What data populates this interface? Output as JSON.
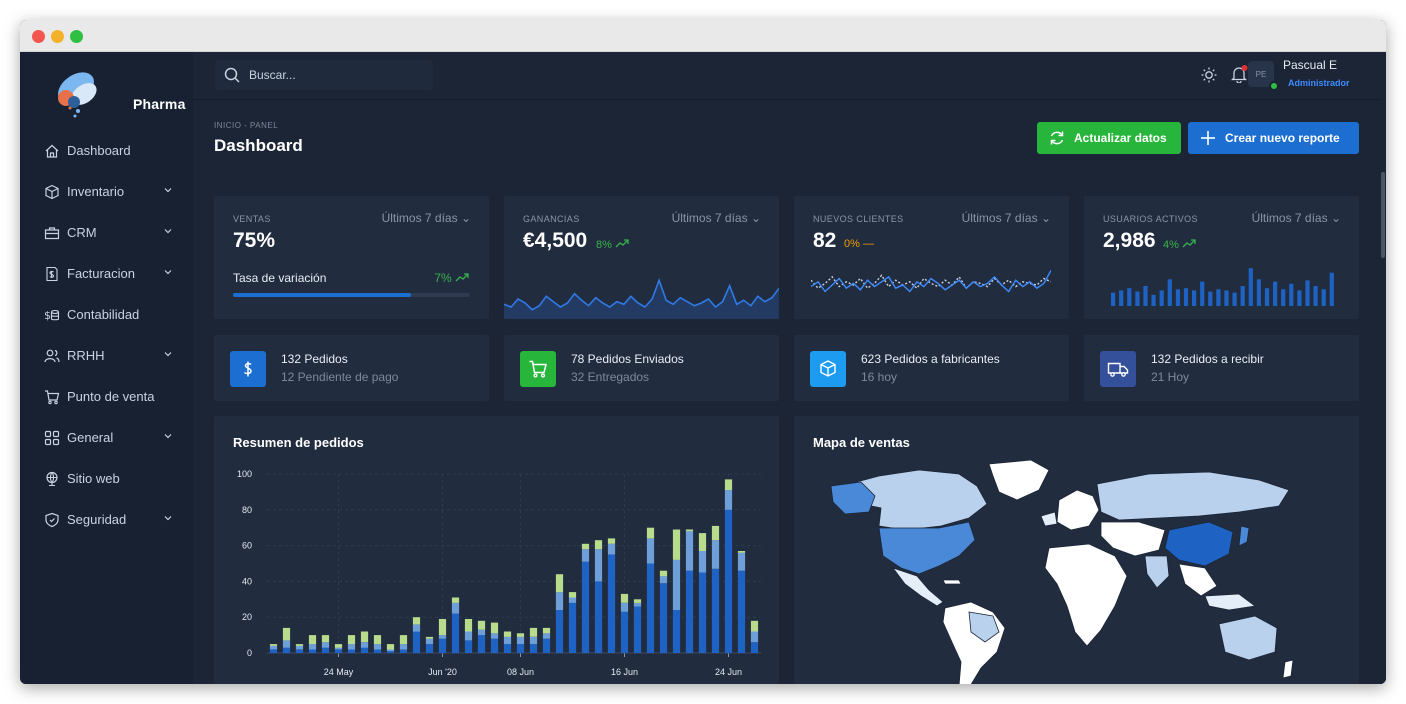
{
  "app": {
    "name": "Pharma"
  },
  "search": {
    "placeholder": "Buscar..."
  },
  "user": {
    "initials": "PE",
    "name": "Pascual E",
    "role": "Administrador"
  },
  "sidebar": {
    "items": [
      {
        "label": "Dashboard",
        "icon": "home-icon",
        "has_submenu": false
      },
      {
        "label": "Inventario",
        "icon": "box-icon",
        "has_submenu": true
      },
      {
        "label": "CRM",
        "icon": "briefcase-icon",
        "has_submenu": true
      },
      {
        "label": "Facturacion",
        "icon": "invoice-icon",
        "has_submenu": true
      },
      {
        "label": "Contabilidad",
        "icon": "coins-icon",
        "has_submenu": false
      },
      {
        "label": "RRHH",
        "icon": "users-icon",
        "has_submenu": true
      },
      {
        "label": "Punto de venta",
        "icon": "cart-icon",
        "has_submenu": false
      },
      {
        "label": "General",
        "icon": "grid-icon",
        "has_submenu": true
      },
      {
        "label": "Sitio web",
        "icon": "globe-icon",
        "has_submenu": false
      },
      {
        "label": "Seguridad",
        "icon": "shield-icon",
        "has_submenu": true
      }
    ]
  },
  "page": {
    "breadcrumb": "INICIO - PANEL",
    "title": "Dashboard",
    "refresh_label": "Actualizar datos",
    "new_report_label": "Crear nuevo reporte"
  },
  "stats": [
    {
      "label": "VENTAS",
      "period": "Últimos 7 días",
      "value": "75%",
      "sub_label": "Tasa de variación",
      "sub_trend": "7%",
      "progress": 0.75
    },
    {
      "label": "GANANCIAS",
      "period": "Últimos 7 días",
      "value": "€4,500",
      "trend": "8%"
    },
    {
      "label": "NUEVOS CLIENTES",
      "period": "Últimos 7 días",
      "value": "82",
      "trend": "0%"
    },
    {
      "label": "USUARIOS ACTIVOS",
      "period": "Últimos 7 días",
      "value": "2,986",
      "trend": "4%"
    }
  ],
  "orders": [
    {
      "title": "132 Pedidos",
      "subtitle": "12 Pendiente de pago",
      "icon": "dollar-icon",
      "color": "#1c6ed1"
    },
    {
      "title": "78 Pedidos Enviados",
      "subtitle": "32 Entregados",
      "icon": "cart-icon",
      "color": "#27b53b"
    },
    {
      "title": "623 Pedidos a fabricantes",
      "subtitle": "16 hoy",
      "icon": "package-icon",
      "color": "#1d9bf0"
    },
    {
      "title": "132 Pedidos a recibir",
      "subtitle": "21 Hoy",
      "icon": "truck-icon",
      "color": "#34509a"
    }
  ],
  "panels": {
    "orders_summary_title": "Resumen de pedidos",
    "sales_map_title": "Mapa de ventas"
  },
  "colors": {
    "accent_blue": "#1c6ed1",
    "accent_green": "#27b53b",
    "trend_up": "#37b24d",
    "trend_flat": "#f59f00",
    "series_1": "#1e63c4",
    "series_2": "#6f9fd8",
    "series_3": "#b9dc8c"
  },
  "chart_data": {
    "type": "bar",
    "stacked": true,
    "title": "Resumen de pedidos",
    "ylim": [
      0,
      100
    ],
    "yticks": [
      0,
      20,
      40,
      60,
      80,
      100
    ],
    "xticks": [
      "24 May",
      "Jun '20",
      "08 Jun",
      "16 Jun",
      "24 Jun"
    ],
    "xtick_index": [
      5,
      13,
      19,
      27,
      35
    ],
    "grid": true,
    "series": [
      {
        "values": [
          2,
          3,
          2,
          2,
          3,
          2,
          2,
          3,
          2,
          1,
          2,
          12,
          5,
          8,
          22,
          7,
          10,
          8,
          5,
          5,
          5,
          8,
          24,
          28,
          51,
          40,
          55,
          23,
          26,
          50,
          39,
          24,
          46,
          45,
          47,
          80,
          46,
          6
        ]
      },
      {
        "values": [
          2,
          4,
          2,
          3,
          3,
          1,
          3,
          3,
          3,
          1,
          3,
          4,
          3,
          2,
          6,
          5,
          3,
          3,
          4,
          4,
          4,
          3,
          10,
          3,
          7,
          18,
          6,
          5,
          2,
          14,
          4,
          28,
          22,
          12,
          16,
          11,
          10,
          6
        ]
      },
      {
        "values": [
          1,
          7,
          1,
          5,
          4,
          2,
          5,
          6,
          5,
          3,
          5,
          4,
          1,
          9,
          3,
          7,
          5,
          6,
          3,
          2,
          5,
          3,
          10,
          3,
          3,
          5,
          3,
          5,
          2,
          6,
          3,
          17,
          1,
          10,
          8,
          6,
          1,
          6
        ]
      }
    ]
  },
  "sparklines": {
    "ganancias": [
      8,
      6,
      12,
      9,
      4,
      7,
      14,
      10,
      6,
      9,
      16,
      11,
      7,
      13,
      9,
      6,
      10,
      8,
      14,
      9,
      6,
      12,
      26,
      11,
      8,
      13,
      10,
      7,
      9,
      12,
      6,
      10,
      22,
      8,
      11,
      7,
      14,
      10,
      13,
      20
    ],
    "clientes_1": [
      12,
      15,
      9,
      13,
      17,
      11,
      14,
      10,
      16,
      12,
      15,
      18,
      11,
      13,
      9,
      15,
      12,
      17,
      14,
      10,
      13,
      16,
      11,
      15,
      12,
      14,
      18,
      13,
      9,
      16,
      12,
      15,
      11,
      14,
      22
    ],
    "clientes_2": [
      16,
      11,
      14,
      18,
      12,
      15,
      13,
      17,
      11,
      14,
      19,
      12,
      16,
      13,
      15,
      11,
      17,
      14,
      12,
      16,
      13,
      18,
      11,
      15,
      14,
      12,
      17,
      13,
      16,
      12,
      15,
      14,
      13,
      17,
      15
    ],
    "usuarios": [
      12,
      14,
      16,
      13,
      18,
      10,
      14,
      24,
      15,
      16,
      14,
      22,
      13,
      15,
      14,
      12,
      18,
      34,
      24,
      16,
      22,
      15,
      20,
      14,
      23,
      18,
      15,
      30
    ]
  }
}
